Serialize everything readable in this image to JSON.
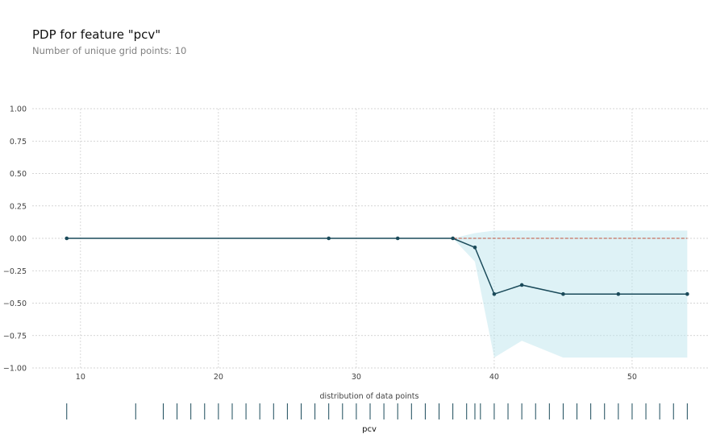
{
  "chart_data": {
    "type": "line",
    "title": "PDP for feature \"pcv\"",
    "subtitle": "Number of unique grid points: 10",
    "xlabel": "pcv",
    "ylabel": "",
    "xlim": [
      6.5,
      55.5
    ],
    "ylim": [
      -1.0,
      1.0
    ],
    "xticks": [
      10,
      20,
      30,
      40,
      50
    ],
    "yticks": [
      1.0,
      0.75,
      0.5,
      0.25,
      0.0,
      -0.25,
      -0.5,
      -0.75,
      -1.0
    ],
    "ytick_labels": [
      "1.00",
      "0.75",
      "0.50",
      "0.25",
      "0.00",
      "−0.25",
      "−0.50",
      "−0.75",
      "−1.00"
    ],
    "grid": true,
    "series": [
      {
        "x": [
          9,
          28,
          33,
          37,
          38.6,
          40,
          42,
          45,
          49,
          54
        ],
        "y": [
          0.0,
          0.0,
          0.0,
          0.0,
          -0.07,
          -0.43,
          -0.36,
          -0.43,
          -0.43,
          -0.43
        ]
      }
    ],
    "confidence_band": {
      "x": [
        9,
        28,
        33,
        37,
        38.6,
        40,
        42,
        45,
        49,
        54
      ],
      "upper": [
        0.0,
        0.0,
        0.0,
        0.0,
        0.04,
        0.06,
        0.06,
        0.06,
        0.06,
        0.06
      ],
      "lower": [
        0.0,
        0.0,
        0.0,
        0.0,
        -0.18,
        -0.92,
        -0.79,
        -0.92,
        -0.92,
        -0.92
      ]
    },
    "reference_line_y": 0.0,
    "distribution_label": "distribution of data points",
    "distribution_points": [
      9,
      14,
      16,
      17,
      18,
      19,
      20,
      21,
      22,
      23,
      24,
      25,
      26,
      27,
      28,
      29,
      30,
      31,
      32,
      33,
      34,
      35,
      36,
      37,
      38,
      38.6,
      39,
      40,
      41,
      42,
      43,
      44,
      45,
      46,
      47,
      48,
      49,
      50,
      51,
      52,
      53,
      54
    ]
  },
  "colors": {
    "line": "#1a4a5a",
    "band": "#bde5ee",
    "reference": "#c0503a",
    "grid": "#c8c8c8",
    "rug": "#1a4a5a"
  }
}
